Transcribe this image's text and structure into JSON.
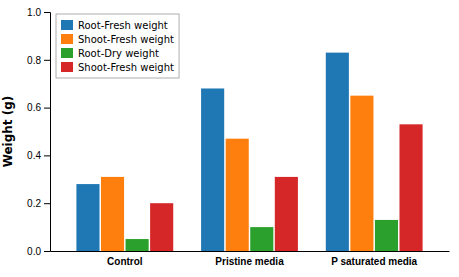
{
  "chart_data": {
    "type": "bar",
    "categories": [
      "Control",
      "Pristine media",
      "P saturated media"
    ],
    "series": [
      {
        "name": "Root-Fresh weight",
        "values": [
          0.28,
          0.68,
          0.83
        ]
      },
      {
        "name": "Shoot-Fresh weight",
        "values": [
          0.31,
          0.47,
          0.65
        ]
      },
      {
        "name": "Root-Dry weight",
        "values": [
          0.05,
          0.1,
          0.13
        ]
      },
      {
        "name": "Shoot-Fresh weight",
        "values": [
          0.2,
          0.31,
          0.53
        ]
      }
    ],
    "ylabel": "Weight (g)",
    "ylim": [
      0,
      1.0
    ],
    "yticks": [
      {
        "value": 0,
        "label": "0.0"
      },
      0.2,
      0.4,
      0.6,
      0.8,
      {
        "value": 1,
        "label": "1.0"
      }
    ],
    "grid": false,
    "legend": "upper left"
  }
}
